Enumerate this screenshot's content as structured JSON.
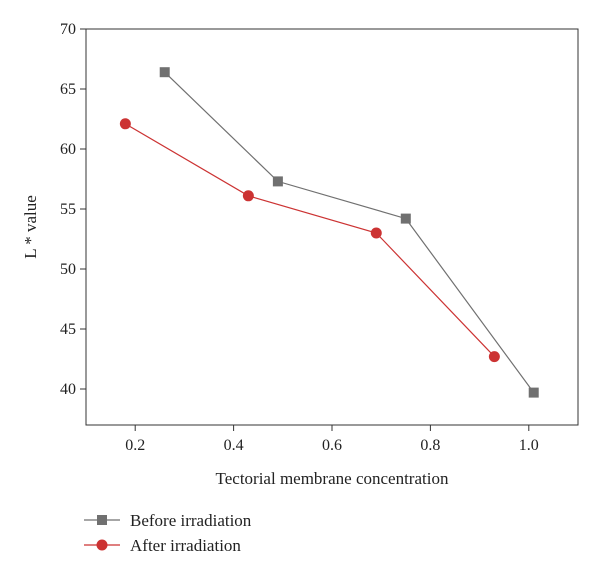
{
  "chart_data": {
    "type": "line",
    "title": "",
    "xlabel": "Tectorial membrane concentration",
    "ylabel": "L * value",
    "xlim": [
      0.1,
      1.1
    ],
    "ylim": [
      37,
      70
    ],
    "xticks": [
      0.2,
      0.4,
      0.6,
      0.8,
      1.0
    ],
    "xtick_labels": [
      "0.2",
      "0.4",
      "0.6",
      "0.8",
      "1.0"
    ],
    "yticks": [
      40,
      45,
      50,
      55,
      60,
      65,
      70
    ],
    "ytick_labels": [
      "40",
      "45",
      "50",
      "55",
      "60",
      "65",
      "70"
    ],
    "grid": false,
    "legend_position": "bottom-left-outside",
    "series": [
      {
        "name": "Before irradiation",
        "color": "#707070",
        "marker": "square",
        "x": [
          0.26,
          0.49,
          0.75,
          1.01
        ],
        "y": [
          66.4,
          57.3,
          54.2,
          39.7
        ]
      },
      {
        "name": "After irradiation",
        "color": "#cc3333",
        "marker": "circle",
        "x": [
          0.18,
          0.43,
          0.69,
          0.93
        ],
        "y": [
          62.1,
          56.1,
          53.0,
          42.7
        ]
      }
    ]
  }
}
